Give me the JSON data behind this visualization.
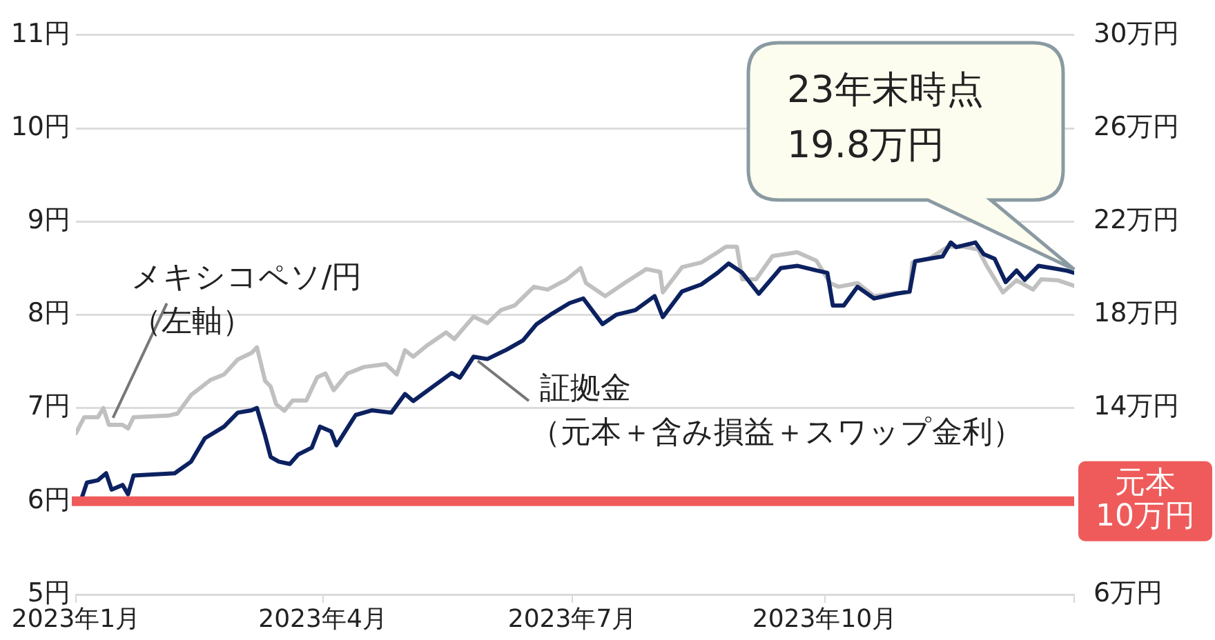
{
  "chart_data": {
    "type": "line",
    "xlim": [
      "2023-01-01",
      "2023-12-31"
    ],
    "xticks": [
      {
        "value": "2023-01-01",
        "label": "2023年1月"
      },
      {
        "value": "2023-04-01",
        "label": "2023年4月"
      },
      {
        "value": "2023-07-01",
        "label": "2023年7月"
      },
      {
        "value": "2023-10-01",
        "label": "2023年10月"
      },
      {
        "value": "2023-12-31",
        "label": null
      }
    ],
    "ylim": [
      5,
      11
    ],
    "yticks": [
      {
        "value": 5,
        "label": "5円"
      },
      {
        "value": 6,
        "label": "6円"
      },
      {
        "value": 7,
        "label": "7円"
      },
      {
        "value": 8,
        "label": "8円"
      },
      {
        "value": 9,
        "label": "9円"
      },
      {
        "value": 10,
        "label": "10円"
      },
      {
        "value": 11,
        "label": "11円"
      }
    ],
    "y2lim": [
      6,
      30
    ],
    "y2ticks": [
      {
        "value": 6,
        "label": "6万円"
      },
      {
        "value": 14,
        "label": "14万円"
      },
      {
        "value": 18,
        "label": "18万円"
      },
      {
        "value": 22,
        "label": "22万円"
      },
      {
        "value": 26,
        "label": "26万円"
      },
      {
        "value": 30,
        "label": "30万円"
      }
    ],
    "grid": "y",
    "series": [
      {
        "name": "メキシコペソ/円（左軸）",
        "color": "#c0c0c0",
        "x": [
          "2023-01-01",
          "2023-01-04",
          "2023-01-09",
          "2023-01-11",
          "2023-01-13",
          "2023-01-18",
          "2023-01-20",
          "2023-01-22",
          "2023-02-04",
          "2023-02-07",
          "2023-02-12",
          "2023-02-19",
          "2023-02-24",
          "2023-03-01",
          "2023-03-06",
          "2023-03-08",
          "2023-03-11",
          "2023-03-13",
          "2023-03-15",
          "2023-03-18",
          "2023-03-21",
          "2023-03-26",
          "2023-03-30",
          "2023-04-02",
          "2023-04-05",
          "2023-04-10",
          "2023-04-16",
          "2023-04-24",
          "2023-04-28",
          "2023-05-01",
          "2023-05-04",
          "2023-05-09",
          "2023-05-16",
          "2023-05-19",
          "2023-05-26",
          "2023-05-31",
          "2023-06-05",
          "2023-06-10",
          "2023-06-17",
          "2023-06-22",
          "2023-06-29",
          "2023-07-04",
          "2023-07-06",
          "2023-07-13",
          "2023-07-20",
          "2023-07-28",
          "2023-08-02",
          "2023-08-03",
          "2023-08-10",
          "2023-08-17",
          "2023-08-23",
          "2023-08-26",
          "2023-08-30",
          "2023-09-01",
          "2023-09-06",
          "2023-09-12",
          "2023-09-21",
          "2023-09-28",
          "2023-10-03",
          "2023-10-06",
          "2023-10-13",
          "2023-10-19",
          "2023-10-27",
          "2023-11-01",
          "2023-11-02",
          "2023-11-08",
          "2023-11-15",
          "2023-11-21",
          "2023-11-26",
          "2023-11-29",
          "2023-12-05",
          "2023-12-10",
          "2023-12-16",
          "2023-12-19",
          "2023-12-25",
          "2023-12-31"
        ],
        "values": [
          6.73,
          6.9,
          6.9,
          7.0,
          6.82,
          6.82,
          6.78,
          6.9,
          6.92,
          6.94,
          7.14,
          7.3,
          7.36,
          7.52,
          7.59,
          7.65,
          7.29,
          7.23,
          7.04,
          6.97,
          7.08,
          7.08,
          7.33,
          7.37,
          7.19,
          7.37,
          7.44,
          7.47,
          7.36,
          7.62,
          7.55,
          7.67,
          7.81,
          7.74,
          7.98,
          7.91,
          8.05,
          8.1,
          8.3,
          8.27,
          8.38,
          8.5,
          8.34,
          8.2,
          8.34,
          8.49,
          8.46,
          8.24,
          8.51,
          8.56,
          8.67,
          8.73,
          8.73,
          8.38,
          8.38,
          8.63,
          8.67,
          8.58,
          8.34,
          8.3,
          8.34,
          8.2,
          8.23,
          8.24,
          8.56,
          8.6,
          8.73,
          8.73,
          8.7,
          8.53,
          8.24,
          8.37,
          8.27,
          8.38,
          8.37,
          8.31
        ]
      },
      {
        "name": "証拠金（元本＋含み損益＋スワップ金利）",
        "color": "#0c2160",
        "axis": "y2",
        "x": [
          "2023-01-01",
          "2023-01-03",
          "2023-01-05",
          "2023-01-09",
          "2023-01-12",
          "2023-01-14",
          "2023-01-18",
          "2023-01-20",
          "2023-01-22",
          "2023-02-06",
          "2023-02-12",
          "2023-02-17",
          "2023-02-24",
          "2023-03-01",
          "2023-03-06",
          "2023-03-08",
          "2023-03-11",
          "2023-03-13",
          "2023-03-16",
          "2023-03-20",
          "2023-03-23",
          "2023-03-28",
          "2023-03-31",
          "2023-04-04",
          "2023-04-06",
          "2023-04-13",
          "2023-04-19",
          "2023-04-26",
          "2023-05-01",
          "2023-05-04",
          "2023-05-11",
          "2023-05-18",
          "2023-05-21",
          "2023-05-26",
          "2023-05-31",
          "2023-06-07",
          "2023-06-13",
          "2023-06-18",
          "2023-06-23",
          "2023-06-30",
          "2023-07-05",
          "2023-07-12",
          "2023-07-17",
          "2023-07-24",
          "2023-07-31",
          "2023-08-03",
          "2023-08-10",
          "2023-08-17",
          "2023-08-23",
          "2023-08-27",
          "2023-09-01",
          "2023-09-07",
          "2023-09-15",
          "2023-09-21",
          "2023-09-28",
          "2023-10-02",
          "2023-10-04",
          "2023-10-08",
          "2023-10-13",
          "2023-10-19",
          "2023-10-27",
          "2023-11-01",
          "2023-11-03",
          "2023-11-08",
          "2023-11-13",
          "2023-11-16",
          "2023-11-18",
          "2023-11-25",
          "2023-11-28",
          "2023-12-02",
          "2023-12-06",
          "2023-12-10",
          "2023-12-13",
          "2023-12-18",
          "2023-12-23",
          "2023-12-28",
          "2023-12-31"
        ],
        "values": [
          10.0,
          10.1,
          10.8,
          10.9,
          11.2,
          10.5,
          10.7,
          10.3,
          11.1,
          11.2,
          11.7,
          12.7,
          13.2,
          13.8,
          13.9,
          14.0,
          12.8,
          11.9,
          11.7,
          11.6,
          12.0,
          12.3,
          13.2,
          13.0,
          12.4,
          13.7,
          13.9,
          13.8,
          14.6,
          14.3,
          14.9,
          15.5,
          15.3,
          16.2,
          16.1,
          16.5,
          16.9,
          17.6,
          18.0,
          18.5,
          18.7,
          17.6,
          18.0,
          18.2,
          18.8,
          17.9,
          19.0,
          19.3,
          19.8,
          20.2,
          19.8,
          18.9,
          20.0,
          20.1,
          19.9,
          19.8,
          18.4,
          18.4,
          19.2,
          18.7,
          18.9,
          19.0,
          20.3,
          20.4,
          20.5,
          21.1,
          20.9,
          21.1,
          20.6,
          20.4,
          19.4,
          19.9,
          19.5,
          20.1,
          20.0,
          19.9,
          19.8
        ]
      }
    ],
    "ref_lines": [
      {
        "axis": "y2",
        "value": 10,
        "label": "元本\n10万円",
        "color": "#ef5b5b"
      }
    ],
    "annotations": [
      "23年末時点\n19.8万円"
    ]
  }
}
